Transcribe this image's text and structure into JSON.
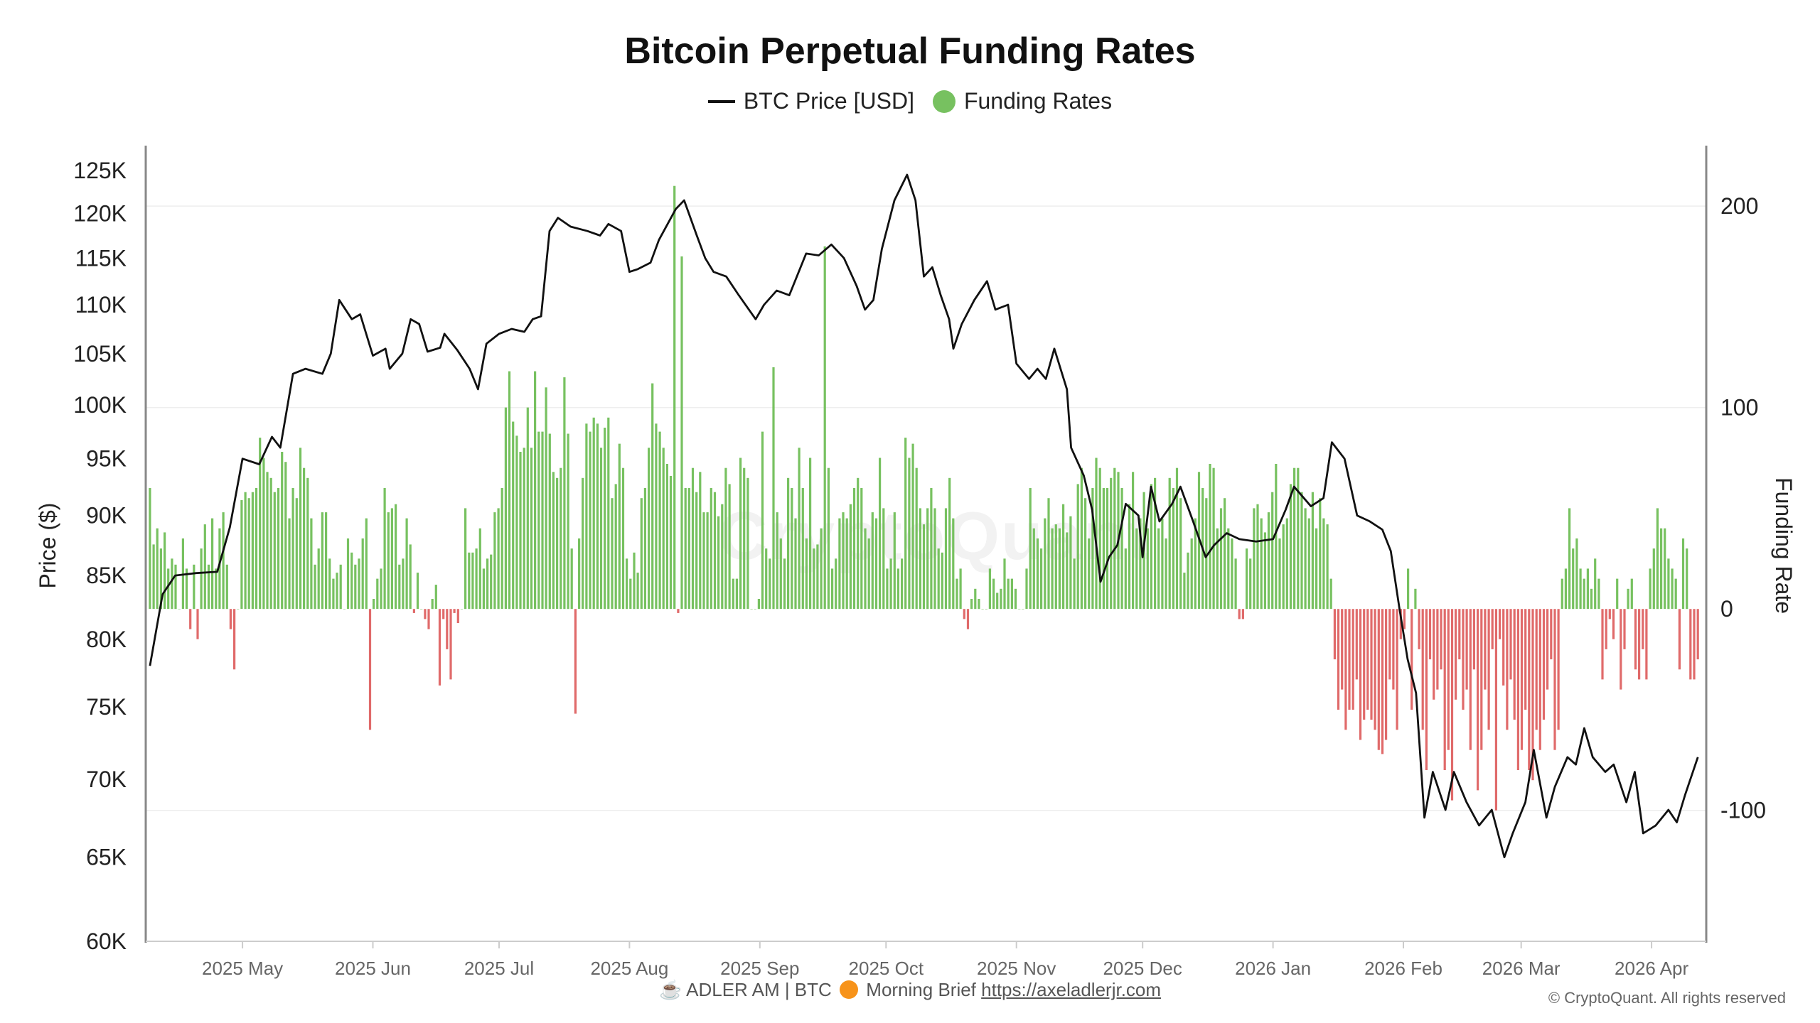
{
  "title": "Bitcoin Perpetual Funding Rates",
  "legend": {
    "price_label": "BTC Price [USD]",
    "funding_label": "Funding Rates"
  },
  "footer": {
    "brand_text": "☕ ADLER AM | BTC",
    "brief_icon": "orange-circle-icon",
    "brief_text": "Morning Brief",
    "link_text": "https://axeladlerjr.com",
    "copyright": "© CryptoQuant. All rights reserved"
  },
  "watermark": "CryptoQuant",
  "colors": {
    "price_line": "#111111",
    "positive": "#77c160",
    "negative": "#e06a6a",
    "axis": "#888888"
  },
  "chart_data": {
    "type": "bar+line",
    "title": "Bitcoin Perpetual Funding Rates",
    "ylabel_left": "Price ($)",
    "ylabel_right": "Funding Rate",
    "y_left_scale": "log",
    "y_left_range": [
      60000,
      128000
    ],
    "y_left_ticks": [
      "60K",
      "65K",
      "70K",
      "75K",
      "80K",
      "85K",
      "90K",
      "95K",
      "100K",
      "105K",
      "110K",
      "115K",
      "120K",
      "125K"
    ],
    "y_left_tick_values": [
      60000,
      65000,
      70000,
      75000,
      80000,
      85000,
      90000,
      95000,
      100000,
      105000,
      110000,
      115000,
      120000,
      125000
    ],
    "y_right_range": [
      -165,
      230
    ],
    "y_right_ticks": [
      "200",
      "100",
      "0",
      "-100"
    ],
    "y_right_tick_values": [
      200,
      100,
      0,
      -100
    ],
    "x_range": [
      "2025-04-08",
      "2026-04-14"
    ],
    "x_ticks": [
      "2025 May",
      "2025 Jun",
      "2025 Jul",
      "2025 Aug",
      "2025 Sep",
      "2025 Oct",
      "2025 Nov",
      "2025 Dec",
      "2026 Jan",
      "2026 Feb",
      "2026 Mar",
      "2026 Apr"
    ],
    "x_tick_dates": [
      "2025-05-01",
      "2025-06-01",
      "2025-07-01",
      "2025-08-01",
      "2025-09-01",
      "2025-10-01",
      "2025-11-01",
      "2025-12-01",
      "2026-01-01",
      "2026-02-01",
      "2026-03-01",
      "2026-04-01"
    ],
    "grid": true,
    "legend_position": "top-center",
    "price_series": {
      "name": "BTC Price [USD]",
      "points": [
        [
          "2025-04-09",
          78000
        ],
        [
          "2025-04-12",
          83500
        ],
        [
          "2025-04-15",
          85000
        ],
        [
          "2025-04-20",
          85200
        ],
        [
          "2025-04-25",
          85300
        ],
        [
          "2025-04-28",
          89000
        ],
        [
          "2025-05-01",
          95000
        ],
        [
          "2025-05-05",
          94500
        ],
        [
          "2025-05-08",
          97000
        ],
        [
          "2025-05-10",
          96000
        ],
        [
          "2025-05-13",
          103000
        ],
        [
          "2025-05-16",
          103500
        ],
        [
          "2025-05-20",
          103000
        ],
        [
          "2025-05-22",
          105000
        ],
        [
          "2025-05-24",
          110500
        ],
        [
          "2025-05-27",
          108500
        ],
        [
          "2025-05-29",
          109000
        ],
        [
          "2025-06-01",
          104800
        ],
        [
          "2025-06-04",
          105500
        ],
        [
          "2025-06-05",
          103500
        ],
        [
          "2025-06-08",
          105000
        ],
        [
          "2025-06-10",
          108500
        ],
        [
          "2025-06-12",
          108000
        ],
        [
          "2025-06-14",
          105200
        ],
        [
          "2025-06-17",
          105600
        ],
        [
          "2025-06-18",
          107000
        ],
        [
          "2025-06-21",
          105400
        ],
        [
          "2025-06-24",
          103500
        ],
        [
          "2025-06-26",
          101500
        ],
        [
          "2025-06-28",
          106000
        ],
        [
          "2025-07-01",
          107000
        ],
        [
          "2025-07-04",
          107500
        ],
        [
          "2025-07-07",
          107200
        ],
        [
          "2025-07-09",
          108500
        ],
        [
          "2025-07-11",
          108800
        ],
        [
          "2025-07-13",
          118000
        ],
        [
          "2025-07-15",
          119500
        ],
        [
          "2025-07-18",
          118500
        ],
        [
          "2025-07-22",
          118000
        ],
        [
          "2025-07-25",
          117500
        ],
        [
          "2025-07-27",
          118800
        ],
        [
          "2025-07-30",
          118000
        ],
        [
          "2025-08-01",
          113500
        ],
        [
          "2025-08-03",
          113800
        ],
        [
          "2025-08-06",
          114500
        ],
        [
          "2025-08-08",
          117000
        ],
        [
          "2025-08-12",
          120500
        ],
        [
          "2025-08-14",
          121500
        ],
        [
          "2025-08-17",
          117500
        ],
        [
          "2025-08-19",
          115000
        ],
        [
          "2025-08-21",
          113500
        ],
        [
          "2025-08-24",
          113000
        ],
        [
          "2025-08-27",
          111000
        ],
        [
          "2025-08-31",
          108500
        ],
        [
          "2025-09-02",
          110000
        ],
        [
          "2025-09-05",
          111500
        ],
        [
          "2025-09-08",
          111000
        ],
        [
          "2025-09-12",
          115500
        ],
        [
          "2025-09-15",
          115300
        ],
        [
          "2025-09-18",
          116500
        ],
        [
          "2025-09-21",
          115000
        ],
        [
          "2025-09-24",
          112000
        ],
        [
          "2025-09-26",
          109500
        ],
        [
          "2025-09-28",
          110500
        ],
        [
          "2025-09-30",
          116000
        ],
        [
          "2025-10-03",
          121500
        ],
        [
          "2025-10-06",
          124500
        ],
        [
          "2025-10-08",
          121500
        ],
        [
          "2025-10-10",
          113000
        ],
        [
          "2025-10-12",
          114000
        ],
        [
          "2025-10-14",
          111000
        ],
        [
          "2025-10-16",
          108500
        ],
        [
          "2025-10-17",
          105500
        ],
        [
          "2025-10-19",
          108000
        ],
        [
          "2025-10-22",
          110500
        ],
        [
          "2025-10-25",
          112500
        ],
        [
          "2025-10-27",
          109500
        ],
        [
          "2025-10-30",
          110000
        ],
        [
          "2025-11-01",
          104000
        ],
        [
          "2025-11-04",
          102500
        ],
        [
          "2025-11-06",
          103500
        ],
        [
          "2025-11-08",
          102500
        ],
        [
          "2025-11-10",
          105500
        ],
        [
          "2025-11-13",
          101500
        ],
        [
          "2025-11-14",
          96000
        ],
        [
          "2025-11-17",
          93500
        ],
        [
          "2025-11-19",
          90500
        ],
        [
          "2025-11-21",
          84500
        ],
        [
          "2025-11-23",
          86500
        ],
        [
          "2025-11-25",
          87500
        ],
        [
          "2025-11-27",
          91000
        ],
        [
          "2025-11-30",
          90000
        ],
        [
          "2025-12-01",
          86500
        ],
        [
          "2025-12-03",
          92500
        ],
        [
          "2025-12-05",
          89500
        ],
        [
          "2025-12-08",
          91000
        ],
        [
          "2025-12-10",
          92500
        ],
        [
          "2025-12-13",
          89500
        ],
        [
          "2025-12-16",
          86500
        ],
        [
          "2025-12-18",
          87500
        ],
        [
          "2025-12-21",
          88500
        ],
        [
          "2025-12-24",
          88000
        ],
        [
          "2025-12-28",
          87800
        ],
        [
          "2026-01-01",
          88000
        ],
        [
          "2026-01-04",
          90500
        ],
        [
          "2026-01-06",
          92500
        ],
        [
          "2026-01-10",
          90800
        ],
        [
          "2026-01-13",
          91500
        ],
        [
          "2026-01-15",
          96500
        ],
        [
          "2026-01-18",
          95000
        ],
        [
          "2026-01-21",
          90000
        ],
        [
          "2026-01-24",
          89500
        ],
        [
          "2026-01-27",
          88800
        ],
        [
          "2026-01-29",
          87000
        ],
        [
          "2026-01-31",
          82500
        ],
        [
          "2026-02-02",
          78500
        ],
        [
          "2026-02-04",
          76000
        ],
        [
          "2026-02-06",
          67500
        ],
        [
          "2026-02-08",
          70500
        ],
        [
          "2026-02-11",
          68000
        ],
        [
          "2026-02-13",
          70500
        ],
        [
          "2026-02-16",
          68500
        ],
        [
          "2026-02-19",
          67000
        ],
        [
          "2026-02-22",
          68000
        ],
        [
          "2026-02-25",
          65000
        ],
        [
          "2026-02-27",
          66500
        ],
        [
          "2026-03-02",
          68500
        ],
        [
          "2026-03-04",
          72000
        ],
        [
          "2026-03-07",
          67500
        ],
        [
          "2026-03-09",
          69500
        ],
        [
          "2026-03-12",
          71500
        ],
        [
          "2026-03-14",
          71000
        ],
        [
          "2026-03-16",
          73500
        ],
        [
          "2026-03-18",
          71500
        ],
        [
          "2026-03-21",
          70500
        ],
        [
          "2026-03-23",
          71000
        ],
        [
          "2026-03-26",
          68500
        ],
        [
          "2026-03-28",
          70500
        ],
        [
          "2026-03-30",
          66500
        ],
        [
          "2026-04-02",
          67000
        ],
        [
          "2026-04-05",
          68000
        ],
        [
          "2026-04-07",
          67200
        ],
        [
          "2026-04-09",
          69000
        ],
        [
          "2026-04-12",
          71500
        ]
      ]
    },
    "funding_series": {
      "name": "Funding Rates",
      "start_date": "2025-04-09",
      "end_date": "2026-04-12",
      "values": [
        60,
        32,
        40,
        30,
        38,
        20,
        25,
        22,
        0,
        35,
        20,
        -10,
        22,
        -15,
        30,
        42,
        22,
        45,
        20,
        40,
        48,
        22,
        -10,
        -30,
        0,
        54,
        58,
        55,
        58,
        60,
        85,
        75,
        68,
        65,
        58,
        60,
        78,
        73,
        45,
        60,
        55,
        80,
        70,
        65,
        45,
        22,
        30,
        48,
        48,
        25,
        15,
        18,
        22,
        0,
        35,
        28,
        22,
        25,
        35,
        45,
        -60,
        5,
        15,
        20,
        60,
        48,
        50,
        52,
        22,
        25,
        45,
        32,
        -2,
        18,
        0,
        -5,
        -10,
        5,
        12,
        -38,
        -5,
        -20,
        -35,
        -2,
        -7,
        0,
        50,
        28,
        28,
        30,
        40,
        20,
        25,
        27,
        48,
        50,
        60,
        100,
        118,
        93,
        86,
        78,
        80,
        100,
        80,
        118,
        88,
        88,
        110,
        87,
        68,
        65,
        70,
        115,
        87,
        30,
        -52,
        35,
        65,
        92,
        88,
        95,
        92,
        80,
        90,
        95,
        55,
        62,
        82,
        70,
        25,
        15,
        28,
        18,
        55,
        60,
        80,
        112,
        92,
        88,
        80,
        72,
        66,
        210,
        -2,
        175,
        60,
        60,
        70,
        58,
        68,
        48,
        48,
        60,
        58,
        46,
        52,
        70,
        62,
        15,
        15,
        75,
        70,
        65,
        0,
        0,
        5,
        88,
        30,
        25,
        120,
        48,
        35,
        25,
        65,
        60,
        45,
        80,
        60,
        35,
        75,
        30,
        32,
        40,
        180,
        70,
        20,
        25,
        45,
        48,
        45,
        52,
        60,
        65,
        60,
        40,
        35,
        48,
        45,
        75,
        50,
        20,
        25,
        48,
        20,
        25,
        85,
        75,
        82,
        70,
        50,
        42,
        50,
        60,
        50,
        30,
        28,
        50,
        65,
        45,
        15,
        20,
        -5,
        -10,
        5,
        10,
        5,
        0,
        0,
        20,
        15,
        8,
        10,
        25,
        15,
        15,
        10,
        0,
        0,
        20,
        60,
        40,
        35,
        30,
        45,
        55,
        40,
        42,
        40,
        52,
        38,
        46,
        25,
        62,
        70,
        55,
        35,
        60,
        75,
        70,
        60,
        60,
        65,
        70,
        68,
        60,
        30,
        52,
        68,
        40,
        45,
        58,
        40,
        62,
        65,
        40,
        45,
        35,
        65,
        60,
        70,
        55,
        18,
        28,
        35,
        45,
        68,
        60,
        55,
        72,
        70,
        40,
        50,
        55,
        40,
        35,
        25,
        -5,
        -5,
        30,
        25,
        50,
        52,
        45,
        38,
        48,
        58,
        72,
        35,
        42,
        45,
        62,
        70,
        70,
        58,
        50,
        45,
        58,
        40,
        55,
        45,
        42,
        15,
        -25,
        -50,
        -40,
        -60,
        -50,
        -50,
        -35,
        -65,
        -55,
        -50,
        -55,
        -60,
        -70,
        -72,
        -65,
        -35,
        -40,
        -60,
        -15,
        -10,
        20,
        -50,
        10,
        -20,
        -60,
        -80,
        -25,
        -45,
        -40,
        -30,
        -80,
        -70,
        -95,
        -45,
        -25,
        -50,
        -40,
        -70,
        -30,
        -90,
        -70,
        -40,
        -60,
        -20,
        -100,
        -15,
        -38,
        -60,
        -35,
        -55,
        -80,
        -70,
        -50,
        -80,
        -85,
        -60,
        -70,
        -55,
        -40,
        -25,
        -70,
        -60,
        15,
        20,
        50,
        30,
        35,
        20,
        15,
        20,
        10,
        25,
        15,
        -35,
        -20,
        -5,
        -15,
        15,
        -40,
        -20,
        10,
        15,
        -30,
        -35,
        -20,
        -35,
        20,
        30,
        50,
        40,
        40,
        25,
        20,
        15,
        -30,
        35,
        30,
        -35,
        -35,
        -25
      ]
    }
  }
}
